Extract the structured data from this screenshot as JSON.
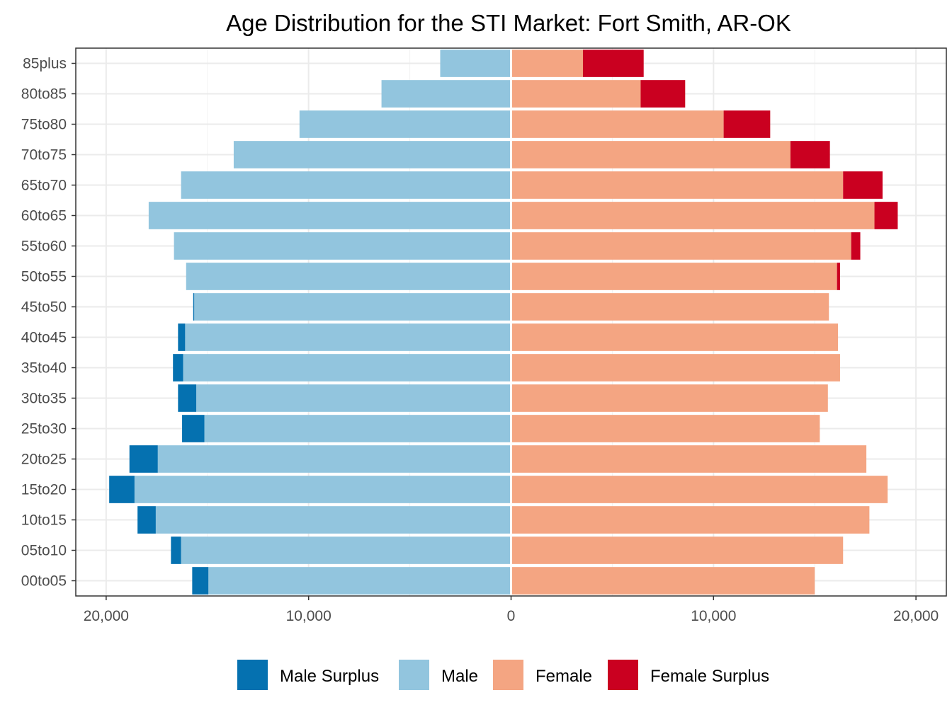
{
  "chart_data": {
    "type": "bar",
    "orientation": "horizontal",
    "title": "Age Distribution for the STI Market: Fort Smith, AR-OK",
    "categories": [
      "00to05",
      "05to10",
      "10to15",
      "15to20",
      "20to25",
      "25to30",
      "30to35",
      "35to40",
      "40to45",
      "45to50",
      "50to55",
      "55to60",
      "60to65",
      "65to70",
      "70to75",
      "75to80",
      "80to85",
      "85plus"
    ],
    "xlim": [
      -21500,
      21500
    ],
    "x_ticks": [
      -20000,
      -10000,
      0,
      10000,
      20000
    ],
    "x_tick_labels": [
      "20,000",
      "10,000",
      "0",
      "10,000",
      "20,000"
    ],
    "grid": true,
    "legend_position": "bottom",
    "series": [
      {
        "name": "Male Surplus",
        "color": "#0571b0",
        "side": "left",
        "values": [
          800,
          500,
          900,
          1250,
          1400,
          1100,
          900,
          500,
          350,
          50,
          0,
          0,
          0,
          0,
          0,
          0,
          0,
          0
        ]
      },
      {
        "name": "Male",
        "color": "#92c5de",
        "side": "left",
        "values": [
          14950,
          16300,
          17550,
          18600,
          17450,
          15150,
          15550,
          16200,
          16100,
          15650,
          16050,
          16650,
          17900,
          16300,
          13700,
          10450,
          6400,
          3500
        ]
      },
      {
        "name": "Female",
        "color": "#f4a582",
        "side": "right",
        "values": [
          15000,
          16400,
          17700,
          18600,
          17550,
          15250,
          15650,
          16250,
          16150,
          15700,
          16100,
          16800,
          17950,
          16400,
          13800,
          10500,
          6400,
          3550
        ]
      },
      {
        "name": "Female Surplus",
        "color": "#ca0020",
        "side": "right",
        "values": [
          0,
          0,
          0,
          0,
          0,
          0,
          0,
          0,
          0,
          0,
          150,
          450,
          1150,
          1950,
          1950,
          2300,
          2200,
          3000
        ]
      }
    ]
  }
}
